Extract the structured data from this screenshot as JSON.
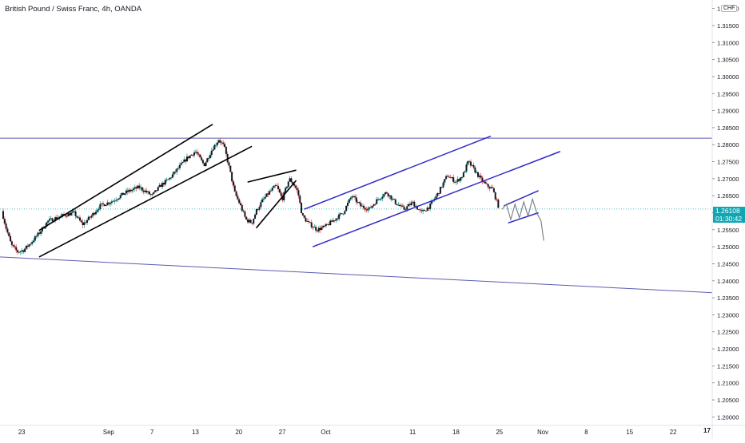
{
  "header": {
    "title": "British Pound / Swiss Franc, 4h, OANDA",
    "currency": "CHF"
  },
  "current_price": {
    "value": "1.26108",
    "countdown": "01:30:42"
  },
  "logo": {
    "icon": "tradingview-logo-icon",
    "text": "17"
  },
  "colors": {
    "up": "#26a69a",
    "down": "#ef5350",
    "candle": "#131722",
    "channel_black": "#000000",
    "channel_blue": "#2f2ac8",
    "level_line": "#5c5bb0",
    "price_line": "#0fa7b3",
    "projection": "#787b86"
  },
  "chart_data": {
    "type": "candlestick",
    "title": "British Pound / Swiss Franc, 4h, OANDA",
    "xlabel": "",
    "ylabel": "",
    "ylim": [
      1.1975,
      1.3225
    ],
    "x_ticks": [
      "23",
      "Sep",
      "7",
      "13",
      "20",
      "27",
      "Oct",
      "11",
      "18",
      "25",
      "Nov",
      "8",
      "15",
      "22"
    ],
    "x_tick_positions": [
      0,
      10,
      15,
      20,
      25,
      30,
      35,
      45,
      50,
      55,
      60,
      65,
      70,
      75
    ],
    "y_ticks": [
      "1.20000",
      "1.20500",
      "1.21000",
      "1.21500",
      "1.22000",
      "1.22500",
      "1.23000",
      "1.23500",
      "1.24000",
      "1.24500",
      "1.25000",
      "1.25500",
      "1.26000",
      "1.26500",
      "1.27000",
      "1.27500",
      "1.28000",
      "1.28500",
      "1.29000",
      "1.29500",
      "1.30000",
      "1.30500",
      "1.31000",
      "1.31500",
      "1.32000"
    ],
    "y_tick_values": [
      1.2,
      1.205,
      1.21,
      1.215,
      1.22,
      1.225,
      1.23,
      1.235,
      1.24,
      1.245,
      1.25,
      1.255,
      1.26,
      1.265,
      1.27,
      1.275,
      1.28,
      1.285,
      1.29,
      1.295,
      1.3,
      1.305,
      1.31,
      1.315,
      1.32
    ],
    "x_domain": [
      -2.5,
      79.5
    ],
    "last_price": 1.26108,
    "price_path": [
      [
        -2.3,
        1.2605
      ],
      [
        -1.8,
        1.2555
      ],
      [
        -1.2,
        1.2505
      ],
      [
        -0.5,
        1.2485
      ],
      [
        0.2,
        1.249
      ],
      [
        1.0,
        1.251
      ],
      [
        2.0,
        1.254
      ],
      [
        3.0,
        1.2575
      ],
      [
        4.5,
        1.259
      ],
      [
        6.0,
        1.26
      ],
      [
        7.0,
        1.2565
      ],
      [
        8.0,
        1.259
      ],
      [
        9.0,
        1.262
      ],
      [
        10.5,
        1.2635
      ],
      [
        12.0,
        1.266
      ],
      [
        13.5,
        1.2675
      ],
      [
        15.0,
        1.265
      ],
      [
        16.0,
        1.268
      ],
      [
        17.0,
        1.27
      ],
      [
        18.0,
        1.273
      ],
      [
        19.0,
        1.276
      ],
      [
        20.0,
        1.278
      ],
      [
        21.0,
        1.274
      ],
      [
        22.0,
        1.279
      ],
      [
        22.7,
        1.2815
      ],
      [
        23.3,
        1.2795
      ],
      [
        24.0,
        1.272
      ],
      [
        24.5,
        1.266
      ],
      [
        25.2,
        1.262
      ],
      [
        25.8,
        1.258
      ],
      [
        26.5,
        1.257
      ],
      [
        27.0,
        1.2605
      ],
      [
        27.7,
        1.2635
      ],
      [
        28.5,
        1.266
      ],
      [
        29.3,
        1.268
      ],
      [
        30.0,
        1.264
      ],
      [
        30.8,
        1.27
      ],
      [
        31.4,
        1.268
      ],
      [
        31.8,
        1.266
      ],
      [
        32.3,
        1.259
      ],
      [
        33.0,
        1.257
      ],
      [
        34.0,
        1.255
      ],
      [
        35.0,
        1.256
      ],
      [
        36.0,
        1.258
      ],
      [
        37.0,
        1.26
      ],
      [
        38.0,
        1.265
      ],
      [
        39.0,
        1.262
      ],
      [
        40.0,
        1.261
      ],
      [
        41.0,
        1.264
      ],
      [
        42.0,
        1.266
      ],
      [
        43.0,
        1.263
      ],
      [
        44.0,
        1.261
      ],
      [
        45.0,
        1.263
      ],
      [
        46.0,
        1.26
      ],
      [
        47.0,
        1.262
      ],
      [
        48.0,
        1.266
      ],
      [
        49.0,
        1.271
      ],
      [
        50.0,
        1.269
      ],
      [
        50.8,
        1.271
      ],
      [
        51.4,
        1.275
      ],
      [
        52.0,
        1.273
      ],
      [
        52.8,
        1.27
      ],
      [
        53.5,
        1.268
      ],
      [
        54.2,
        1.267
      ],
      [
        54.6,
        1.264
      ],
      [
        55.0,
        1.261
      ]
    ],
    "horizontal_levels": [
      1.2819
    ],
    "trend_lines": [
      {
        "style": "black",
        "from": [
          2.0,
          1.2548
        ],
        "to": [
          22.0,
          1.286
        ]
      },
      {
        "style": "black",
        "from": [
          2.0,
          1.247
        ],
        "to": [
          26.5,
          1.2795
        ]
      },
      {
        "style": "black",
        "from": [
          26.0,
          1.269
        ],
        "to": [
          31.6,
          1.2725
        ]
      },
      {
        "style": "black",
        "from": [
          27.0,
          1.2555
        ],
        "to": [
          31.6,
          1.2695
        ]
      },
      {
        "style": "blue",
        "from": [
          32.5,
          1.261
        ],
        "to": [
          54.0,
          1.2825
        ]
      },
      {
        "style": "blue",
        "from": [
          33.5,
          1.25
        ],
        "to": [
          62.0,
          1.278
        ]
      },
      {
        "style": "blue",
        "from": [
          55.5,
          1.262
        ],
        "to": [
          59.5,
          1.2665
        ]
      },
      {
        "style": "blue",
        "from": [
          56.0,
          1.257
        ],
        "to": [
          59.5,
          1.26
        ]
      },
      {
        "style": "level",
        "from": [
          -2.5,
          1.247
        ],
        "to": [
          79.5,
          1.2365
        ]
      }
    ],
    "projection_path": [
      [
        55.3,
        1.261
      ],
      [
        55.8,
        1.2625
      ],
      [
        56.3,
        1.258
      ],
      [
        56.8,
        1.2625
      ],
      [
        57.3,
        1.2585
      ],
      [
        57.8,
        1.2632
      ],
      [
        58.3,
        1.259
      ],
      [
        58.8,
        1.264
      ],
      [
        59.3,
        1.26
      ],
      [
        59.8,
        1.2575
      ],
      [
        60.1,
        1.2518
      ]
    ]
  }
}
